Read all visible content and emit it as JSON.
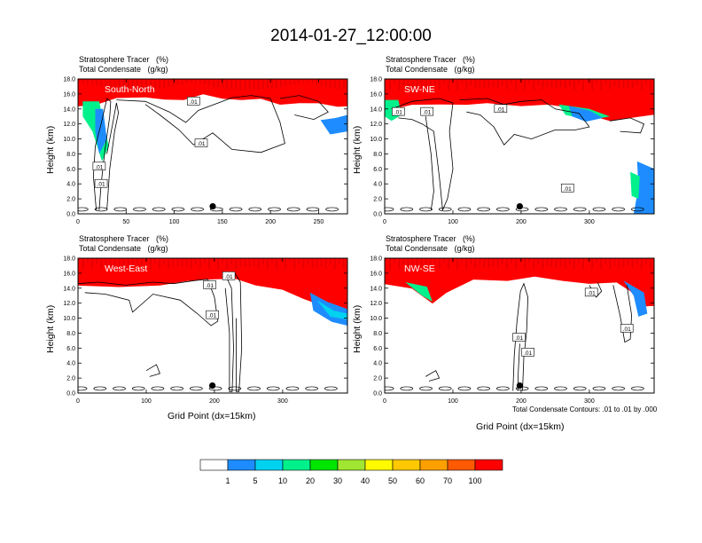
{
  "title": "2014-01-27_12:00:00",
  "colors": [
    "#ffffff",
    "#1e8cff",
    "#00d2f0",
    "#00f08c",
    "#00e600",
    "#a0e632",
    "#fffa00",
    "#ffc800",
    "#ffa000",
    "#ff5a00",
    "#ff0000"
  ],
  "chart_data": [
    {
      "type": "heatmap",
      "name": "South-North",
      "label1": "Stratosphere Tracer   (%)",
      "label2": "Total Condensate   (g/kg)",
      "xlim": [
        0,
        280
      ],
      "xticks": [
        0,
        50,
        100,
        150,
        200,
        250
      ],
      "ylim": [
        0,
        18
      ],
      "yticks": [
        "0.0",
        "2.0",
        "4.0",
        "6.0",
        "8.0",
        "10.0",
        "12.0",
        "14.0",
        "16.0",
        "18.0"
      ],
      "ylabel": "Height (km)",
      "xlabel": "",
      "point_x": 140,
      "contour_labels": [
        ".01",
        ".01",
        ".01",
        ".01"
      ]
    },
    {
      "type": "heatmap",
      "name": "SW-NE",
      "label1": "Stratosphere Tracer   (%)",
      "label2": "Total Condensate   (g/kg)",
      "xlim": [
        0,
        395
      ],
      "xticks": [
        0,
        100,
        200,
        300
      ],
      "ylim": [
        0,
        18
      ],
      "yticks": [
        "0.0",
        "2.0",
        "4.0",
        "6.0",
        "8.0",
        "10.0",
        "12.0",
        "14.0",
        "16.0",
        "18.0"
      ],
      "ylabel": "Height (km)",
      "xlabel": "",
      "point_x": 198,
      "contour_labels": [
        ".01",
        ".01",
        ".01",
        ".01"
      ]
    },
    {
      "type": "heatmap",
      "name": "West-East",
      "label1": "Stratosphere Tracer   (%)",
      "label2": "Total Condensate   (g/kg)",
      "xlim": [
        0,
        395
      ],
      "xticks": [
        0,
        100,
        200,
        300
      ],
      "ylim": [
        0,
        18
      ],
      "yticks": [
        "0.0",
        "2.0",
        "4.0",
        "6.0",
        "8.0",
        "10.0",
        "12.0",
        "14.0",
        "16.0",
        "18.0"
      ],
      "ylabel": "Height (km)",
      "xlabel": "Grid Point (dx=15km)",
      "point_x": 197,
      "contour_labels": [
        ".01",
        ".01",
        ".01"
      ]
    },
    {
      "type": "heatmap",
      "name": "NW-SE",
      "label1": "Stratosphere Tracer   (%)",
      "label2": "Total Condensate   (g/kg)",
      "xlim": [
        0,
        395
      ],
      "xticks": [
        0,
        100,
        200,
        300
      ],
      "ylim": [
        0,
        18
      ],
      "yticks": [
        "0.0",
        "2.0",
        "4.0",
        "6.0",
        "8.0",
        "10.0",
        "12.0",
        "14.0",
        "16.0",
        "18.0"
      ],
      "ylabel": "Height (km)",
      "xlabel": "Grid Point (dx=15km)",
      "point_x": 198,
      "contour_labels": [
        ".01",
        ".01",
        ".01",
        ".01"
      ]
    }
  ],
  "contour_note": "Total Condensate Contours: .01 to .01 by .000",
  "legend": {
    "labels": [
      "1",
      "5",
      "10",
      "20",
      "30",
      "40",
      "50",
      "60",
      "70",
      "100"
    ]
  }
}
